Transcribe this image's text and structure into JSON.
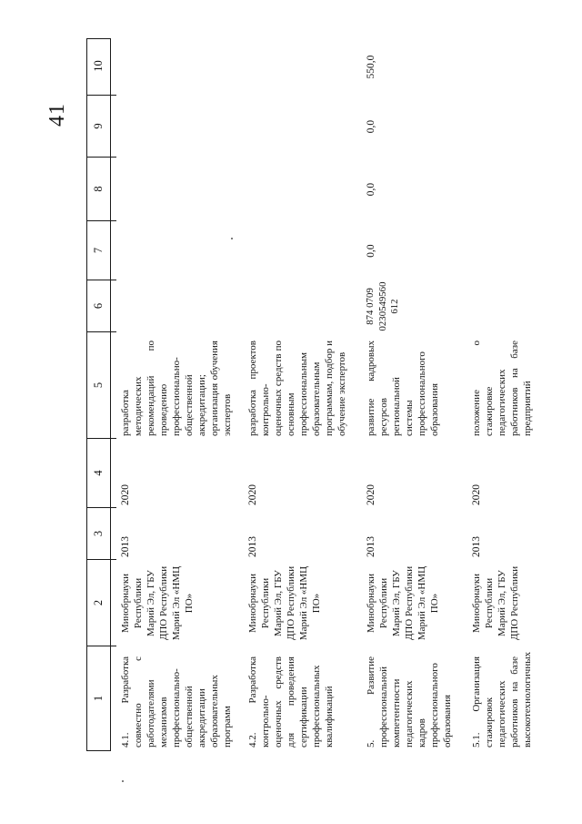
{
  "page_number": "41",
  "table": {
    "columns": [
      "1",
      "2",
      "3",
      "4",
      "5",
      "6",
      "7",
      "8",
      "9",
      "10"
    ],
    "rows": [
      {
        "c1": "4.1. Разработка совместно с работодателями механизмов профессионально-общественной аккредитации образовательных программ",
        "c2": "Минобрнауки Республики Марий Эл, ГБУ ДПО Республики Марий Эл «НМЦ ПО»",
        "c3": "2013",
        "c4": "2020",
        "c5": "разработка методических рекомендаций по проведению профессионально-общественной аккредитации; организация обучения экспертов",
        "c6": "",
        "c7": "",
        "c8": "",
        "c9": "",
        "c10": ""
      },
      {
        "c1": "4.2. Разработка контрольно-оценочных средств для проведения сертификации профессиональных квалификаций",
        "c2": "Минобрнауки Республики Марий Эл, ГБУ ДПО Республики Марий Эл «НМЦ ПО»",
        "c3": "2013",
        "c4": "2020",
        "c5": "разработка проектов контрольно-оценочных средств по основным профессиональным образовательным программам, подбор и обучение экспертов",
        "c6": "",
        "c7": "",
        "c8": "",
        "c9": "",
        "c10": ""
      },
      {
        "c1": "5. Развитие профессиональной компетентности педагогических кадров профессионального образования",
        "c2": "Минобрнауки Республики Марий Эл, ГБУ ДПО Республики Марий Эл «НМЦ ПО»",
        "c3": "2013",
        "c4": "2020",
        "c5": "развитие кадровых ресурсов региональной системы профессионального образования",
        "c6": "874 0709 0230549560 612",
        "c7": "0,0",
        "c8": "0,0",
        "c9": "0,0",
        "c10": "550,0"
      },
      {
        "c1": "5.1. Организация стажировок педагогических работников на базе высокотехнологичных",
        "c2": "Минобрнауки Республики Марий Эл, ГБУ ДПО Республики",
        "c3": "2013",
        "c4": "2020",
        "c5": "положение о стажировке педагогических работников на базе предприятий",
        "c6": "",
        "c7": "",
        "c8": "",
        "c9": "",
        "c10": ""
      }
    ]
  }
}
